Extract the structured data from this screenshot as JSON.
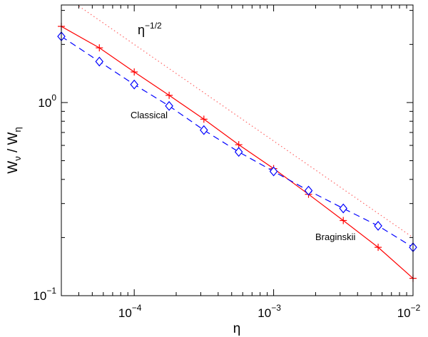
{
  "chart_data": {
    "type": "line",
    "x_scale": "log",
    "y_scale": "log",
    "xlim": [
      3e-05,
      0.01
    ],
    "ylim": [
      0.1,
      3.2
    ],
    "xlabel": "η",
    "ylabel": {
      "base": "W",
      "sub_num": "ν",
      "sep": " / ",
      "base2": "W",
      "sub_den": "η"
    },
    "x_ticks": [
      {
        "value": 0.0001,
        "base": "10",
        "exp": "−4"
      },
      {
        "value": 0.001,
        "base": "10",
        "exp": "−3"
      },
      {
        "value": 0.01,
        "base": "10",
        "exp": "−2"
      }
    ],
    "y_ticks": [
      {
        "value": 0.1,
        "base": "10",
        "exp": "−1"
      },
      {
        "value": 1,
        "base": "10",
        "exp": "0"
      }
    ],
    "series": [
      {
        "name": "Classical",
        "color": "#ff0000",
        "line_style": "solid",
        "marker": "plus",
        "x": [
          3e-05,
          5.62e-05,
          0.0001,
          0.000178,
          0.000316,
          0.000562,
          0.001,
          0.00178,
          0.00316,
          0.00562,
          0.01
        ],
        "y": [
          2.48,
          1.92,
          1.44,
          1.09,
          0.82,
          0.605,
          0.455,
          0.335,
          0.245,
          0.178,
          0.123
        ]
      },
      {
        "name": "Braginskii",
        "color": "#0000ff",
        "line_style": "dashed",
        "marker": "diamond",
        "x": [
          3e-05,
          5.62e-05,
          0.0001,
          0.000178,
          0.000316,
          0.000562,
          0.001,
          0.00178,
          0.00316,
          0.00562,
          0.01
        ],
        "y": [
          2.2,
          1.63,
          1.24,
          0.96,
          0.72,
          0.555,
          0.44,
          0.35,
          0.283,
          0.23,
          0.178
        ]
      },
      {
        "name": "η^-1/2",
        "color": "#ff6666",
        "line_style": "dotted",
        "marker": "none",
        "x": [
          3e-05,
          0.01
        ],
        "y": [
          3.65,
          0.2
        ]
      }
    ],
    "annotations": [
      {
        "text": "Classical"
      },
      {
        "text": "Braginskii"
      },
      {
        "base": "η",
        "exp": "−1/2"
      }
    ],
    "grid": false,
    "legend": "none"
  }
}
